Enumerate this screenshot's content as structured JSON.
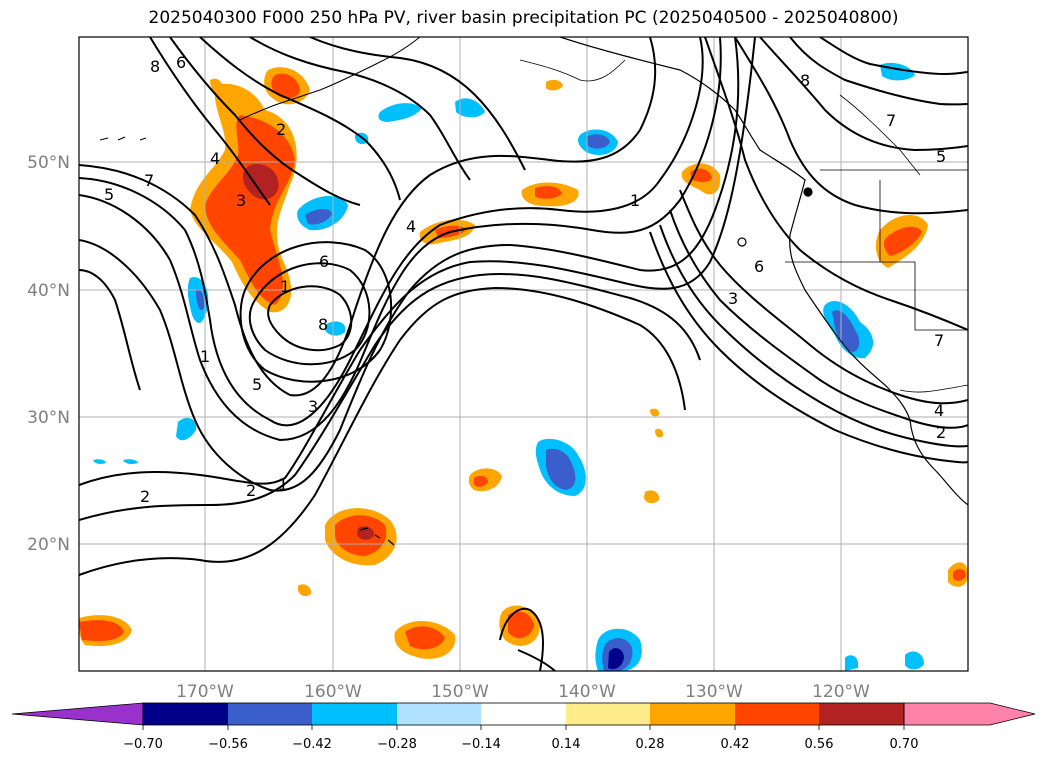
{
  "title": "2025040300 F000 250 hPa PV, river basin precipitation PC (2025040500 - 2025040800)",
  "map": {
    "lat_labels": [
      "50°N",
      "40°N",
      "30°N",
      "20°N"
    ],
    "lon_labels": [
      "170°W",
      "160°W",
      "150°W",
      "140°W",
      "130°W",
      "120°W"
    ],
    "contour_labels": [
      "8",
      "6",
      "5",
      "7",
      "4",
      "3",
      "2",
      "1",
      "6",
      "8",
      "4",
      "5",
      "3",
      "1",
      "2",
      "2",
      "1",
      "1",
      "8",
      "7",
      "5",
      "6",
      "3",
      "7",
      "4",
      "2"
    ],
    "pv_contour_color": "#000000",
    "coastline_color": "#000000",
    "gridline_color": "#b0b0b0"
  },
  "colorbar": {
    "ticks": [
      "−0.70",
      "−0.56",
      "−0.42",
      "−0.28",
      "−0.14",
      "0.14",
      "0.28",
      "0.42",
      "0.56",
      "0.70"
    ],
    "colors": [
      "#9932cc",
      "#00008b",
      "#3a5fcd",
      "#00bfff",
      "#b0e2ff",
      "#ffffff",
      "#ffec8b",
      "#ffa500",
      "#ff4500",
      "#b22222",
      "#ff82ab"
    ]
  }
}
